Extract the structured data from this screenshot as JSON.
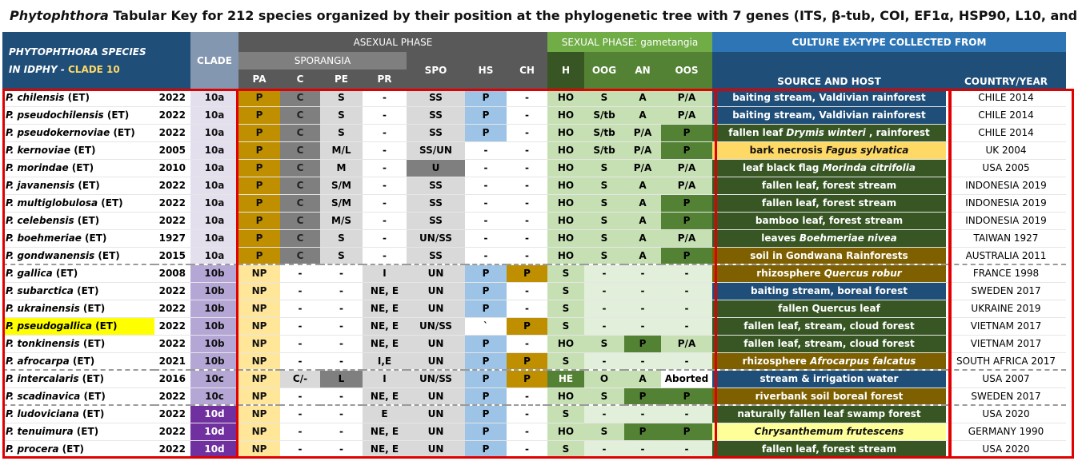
{
  "title": {
    "em": "Phytophthora",
    "rest": " Tabular Key for 212 species organized by their position at the phylogenetic tree with 7 genes (ITS, β-tub, COI, EF1α, HSP90, L10, and YPT1)"
  },
  "header": {
    "species_line1": "PHYTOPHTHORA  SPECIES",
    "species_line2": "IN IDPHY -",
    "clade_label": "CLADE 10",
    "clade": "CLADE",
    "asexual": "ASEXUAL PHASE",
    "sporangia": "SPORANGIA",
    "sexual": "SEXUAL PHASE: gametangia",
    "culture": "CULTURE EX-TYPE COLLECTED FROM",
    "cols": {
      "pa": "PA",
      "c": "C",
      "pe": "PE",
      "pr": "PR",
      "spo": "SPO",
      "hs": "HS",
      "ch": "CH",
      "h": "H",
      "oog": "OOG",
      "an": "AN",
      "oos": "OOS",
      "source": "SOURCE AND HOST",
      "country": "COUNTRY/YEAR"
    }
  },
  "colors": {
    "clade_a": "#e4dfec",
    "clade_b": "#b4a7d6",
    "clade_c": "#b4a7d6",
    "clade_d": "#7030a0",
    "pa_P": "#bf8f00",
    "pa_NP": "#ffe699",
    "c_dark": "#7f7f7f",
    "cell_light": "#d9d9d9",
    "mid_gray": "#a6a6a6",
    "spo_dark": "#7f7f7f",
    "hs_blue": "#9dc3e6",
    "ch_gold": "#bf8f00",
    "green_light": "#c6e0b4",
    "green_pale": "#e2efda",
    "green_dark": "#548235",
    "source_dkgreen": "#375623",
    "source_blue": "#1f4e79",
    "source_brown": "#7f6000",
    "source_yellow": "#ffd966",
    "source_lightyellow": "#ffff99",
    "highlight": "#ffff00"
  },
  "rows": [
    {
      "sp": "P. chilensis",
      "et": " (ET)",
      "year": "2022",
      "clade": "10a",
      "pa": "P",
      "c": "C",
      "pe": "S",
      "pr": "-",
      "spo": "SS",
      "hs": "P",
      "ch": "-",
      "h": "HO",
      "oog": "S",
      "an": "A",
      "oos": "P/A",
      "src": "baiting stream, Valdivian rainforest",
      "src_i": "",
      "src_after": "",
      "src_bg": "blue",
      "country": "CHILE 2014"
    },
    {
      "sp": "P. pseudochilensis",
      "et": " (ET)",
      "year": "2022",
      "clade": "10a",
      "pa": "P",
      "c": "C",
      "pe": "S",
      "pr": "-",
      "spo": "SS",
      "hs": "P",
      "ch": "-",
      "h": "HO",
      "oog": "S/tb",
      "an": "A",
      "oos": "P/A",
      "src": "baiting stream, Valdivian rainforest",
      "src_i": "",
      "src_after": "",
      "src_bg": "blue",
      "country": "CHILE 2014"
    },
    {
      "sp": "P. pseudokernoviae",
      "et": " (ET)",
      "year": "2022",
      "clade": "10a",
      "pa": "P",
      "c": "C",
      "pe": "S",
      "pr": "-",
      "spo": "SS",
      "hs": "P",
      "ch": "-",
      "h": "HO",
      "oog": "S/tb",
      "an": "P/A",
      "oos": "P",
      "src": "fallen leaf ",
      "src_i": "Drymis winteri",
      "src_after": " , rainforest",
      "src_bg": "dkgreen",
      "country": "CHILE 2014"
    },
    {
      "sp": "P. kernoviae",
      "et": " (ET)",
      "year": "2005",
      "clade": "10a",
      "pa": "P",
      "c": "C",
      "pe": "M/L",
      "pr": "-",
      "spo": "SS/UN",
      "hs": "-",
      "ch": "-",
      "h": "HO",
      "oog": "S/tb",
      "an": "P/A",
      "oos": "P",
      "src": "bark necrosis ",
      "src_i": "Fagus sylvatica",
      "src_after": "",
      "src_bg": "yellow",
      "country": "UK 2004"
    },
    {
      "sp": "P. morindae",
      "et": " (ET)",
      "year": "2010",
      "clade": "10a",
      "pa": "P",
      "c": "C",
      "pe": "M",
      "pr": "-",
      "spo": "U",
      "hs": "-",
      "ch": "-",
      "h": "HO",
      "oog": "S",
      "an": "P/A",
      "oos": "P/A",
      "src": "leaf black flag ",
      "src_i": "Morinda citrifolia",
      "src_after": "",
      "src_bg": "dkgreen",
      "country": "USA 2005"
    },
    {
      "sp": "P. javanensis",
      "et": " (ET)",
      "year": "2022",
      "clade": "10a",
      "pa": "P",
      "c": "C",
      "pe": "S/M",
      "pr": "-",
      "spo": "SS",
      "hs": "-",
      "ch": "-",
      "h": "HO",
      "oog": "S",
      "an": "A",
      "oos": "P/A",
      "src": "fallen leaf, forest stream",
      "src_i": "",
      "src_after": "",
      "src_bg": "dkgreen",
      "country": "INDONESIA 2019"
    },
    {
      "sp": "P. multiglobulosa",
      "et": " (ET)",
      "year": "2022",
      "clade": "10a",
      "pa": "P",
      "c": "C",
      "pe": "S/M",
      "pr": "-",
      "spo": "SS",
      "hs": "-",
      "ch": "-",
      "h": "HO",
      "oog": "S",
      "an": "A",
      "oos": "P",
      "src": "fallen leaf, forest stream",
      "src_i": "",
      "src_after": "",
      "src_bg": "dkgreen",
      "country": "INDONESIA 2019"
    },
    {
      "sp": "P. celebensis",
      "et": " (ET)",
      "year": "2022",
      "clade": "10a",
      "pa": "P",
      "c": "C",
      "pe": "M/S",
      "pr": "-",
      "spo": "SS",
      "hs": "-",
      "ch": "-",
      "h": "HO",
      "oog": "S",
      "an": "A",
      "oos": "P",
      "src": "bamboo leaf, forest stream",
      "src_i": "",
      "src_after": "",
      "src_bg": "dkgreen",
      "country": "INDONESIA 2019"
    },
    {
      "sp": "P. boehmeriae",
      "et": " (ET)",
      "year": "1927",
      "clade": "10a",
      "pa": "P",
      "c": "C",
      "pe": "S",
      "pr": "-",
      "spo": "UN/SS",
      "hs": "-",
      "ch": "-",
      "h": "HO",
      "oog": "S",
      "an": "A",
      "oos": "P/A",
      "src": "leaves ",
      "src_i": "Boehmeriae nivea",
      "src_after": "",
      "src_bg": "dkgreen",
      "country": "TAIWAN 1927"
    },
    {
      "sp": "P. gondwanensis",
      "et": " (ET)",
      "year": "2015",
      "clade": "10a",
      "pa": "P",
      "c": "C",
      "pe": "S",
      "pr": "-",
      "spo": "SS",
      "hs": "-",
      "ch": "-",
      "h": "HO",
      "oog": "S",
      "an": "A",
      "oos": "P",
      "src": "soil in Gondwana Rainforests",
      "src_i": "",
      "src_after": "",
      "src_bg": "brown",
      "country": "AUSTRALIA 2011"
    },
    {
      "sp": "P. gallica",
      "et": " (ET)",
      "year": "2008",
      "clade": "10b",
      "pa": "NP",
      "c": "-",
      "pe": "-",
      "pr": "I",
      "spo": "UN",
      "hs": "P",
      "ch": "P",
      "h": "S",
      "oog": "-",
      "an": "-",
      "oos": "-",
      "src": "rhizosphere ",
      "src_i": "Quercus robur",
      "src_after": "",
      "src_bg": "brown",
      "country": "FRANCE 1998"
    },
    {
      "sp": "P. subarctica",
      "et": " (ET)",
      "year": "2022",
      "clade": "10b",
      "pa": "NP",
      "c": "-",
      "pe": "-",
      "pr": "NE, E",
      "spo": "UN",
      "hs": "P",
      "ch": "-",
      "h": "S",
      "oog": "-",
      "an": "-",
      "oos": "-",
      "src": "baiting stream, boreal forest",
      "src_i": "",
      "src_after": "",
      "src_bg": "blue",
      "country": "SWEDEN 2017"
    },
    {
      "sp": "P. ukrainensis",
      "et": " (ET)",
      "year": "2022",
      "clade": "10b",
      "pa": "NP",
      "c": "-",
      "pe": "-",
      "pr": "NE, E",
      "spo": "UN",
      "hs": "P",
      "ch": "-",
      "h": "S",
      "oog": "-",
      "an": "-",
      "oos": "-",
      "src": "fallen Quercus leaf",
      "src_i": "",
      "src_after": "",
      "src_bg": "dkgreen",
      "country": "UKRAINE 2019"
    },
    {
      "sp": "P. pseudogallica",
      "et": " (ET)",
      "year": "2022",
      "clade": "10b",
      "pa": "NP",
      "c": "-",
      "pe": "-",
      "pr": "NE, E",
      "spo": "UN/SS",
      "hs": "`",
      "ch": "P",
      "h": "S",
      "oog": "-",
      "an": "-",
      "oos": "-",
      "src": "fallen leaf, stream, cloud forest",
      "src_i": "",
      "src_after": "",
      "src_bg": "dkgreen",
      "country": "VIETNAM 2017"
    },
    {
      "sp": "P. tonkinensis",
      "et": " (ET)",
      "year": "2022",
      "clade": "10b",
      "pa": "NP",
      "c": "-",
      "pe": "-",
      "pr": "NE, E",
      "spo": "UN",
      "hs": "P",
      "ch": "-",
      "h": "HO",
      "oog": "S",
      "an": "P",
      "oos": "P/A",
      "src": "fallen leaf, stream, cloud forest",
      "src_i": "",
      "src_after": "",
      "src_bg": "dkgreen",
      "country": "VIETNAM 2017"
    },
    {
      "sp": "P. afrocarpa",
      "et": " (ET)",
      "year": "2021",
      "clade": "10b",
      "pa": "NP",
      "c": "-",
      "pe": "-",
      "pr": "I,E",
      "spo": "UN",
      "hs": "P",
      "ch": "P",
      "h": "S",
      "oog": "-",
      "an": "-",
      "oos": "-",
      "src": "rhizosphere ",
      "src_i": "Afrocarpus falcatus",
      "src_after": "",
      "src_bg": "brown",
      "country": "SOUTH AFRICA 2017"
    },
    {
      "sp": "P. intercalaris",
      "et": " (ET)",
      "year": "2016",
      "clade": "10c",
      "pa": "NP",
      "c": "C/-",
      "pe": "L",
      "pr": "I",
      "spo": "UN/SS",
      "hs": "P",
      "ch": "P",
      "h": "HE",
      "oog": "O",
      "an": "A",
      "oos": "Aborted",
      "src": "stream & irrigation water",
      "src_i": "",
      "src_after": "",
      "src_bg": "blue",
      "country": "USA 2007"
    },
    {
      "sp": "P. scadinavica",
      "et": " (ET)",
      "year": "2022",
      "clade": "10c",
      "pa": "NP",
      "c": "-",
      "pe": "-",
      "pr": "NE, E",
      "spo": "UN",
      "hs": "P",
      "ch": "-",
      "h": "HO",
      "oog": "S",
      "an": "P",
      "oos": "P",
      "src": "riverbank soil boreal forest",
      "src_i": "",
      "src_after": "",
      "src_bg": "brown",
      "country": "SWEDEN 2017"
    },
    {
      "sp": "P. ludoviciana",
      "et": " (ET)",
      "year": "2022",
      "clade": "10d",
      "pa": "NP",
      "c": "-",
      "pe": "-",
      "pr": "E",
      "spo": "UN",
      "hs": "P",
      "ch": "-",
      "h": "S",
      "oog": "-",
      "an": "-",
      "oos": "-",
      "src": "naturally fallen leaf swamp forest",
      "src_i": "",
      "src_after": "",
      "src_bg": "dkgreen",
      "country": "USA 2020"
    },
    {
      "sp": "P. tenuimura",
      "et": " (ET)",
      "year": "2022",
      "clade": "10d",
      "pa": "NP",
      "c": "-",
      "pe": "-",
      "pr": "NE, E",
      "spo": "UN",
      "hs": "P",
      "ch": "-",
      "h": "HO",
      "oog": "S",
      "an": "P",
      "oos": "P",
      "src": "",
      "src_i": "Chrysanthemum frutescens",
      "src_after": "",
      "src_bg": "lightyellow",
      "country": "GERMANY 1990"
    },
    {
      "sp": "P. procera",
      "et": " (ET)",
      "year": "2022",
      "clade": "10d",
      "pa": "NP",
      "c": "-",
      "pe": "-",
      "pr": "NE, E",
      "spo": "UN",
      "hs": "P",
      "ch": "-",
      "h": "S",
      "oog": "-",
      "an": "-",
      "oos": "-",
      "src": "fallen leaf, forest stream",
      "src_i": "",
      "src_after": "",
      "src_bg": "dkgreen",
      "country": "USA 2020"
    }
  ]
}
